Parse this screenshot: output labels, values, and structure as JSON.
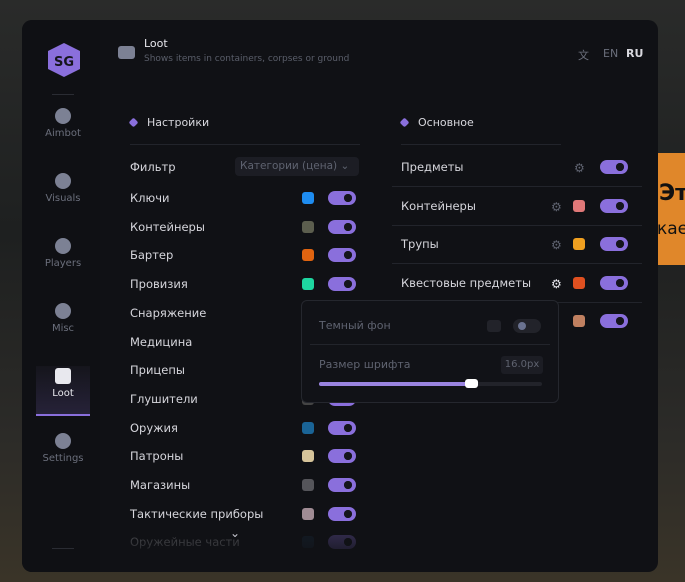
{
  "background": {
    "banner_line1": "Эт",
    "banner_line2": "кае"
  },
  "sidebar": {
    "items": [
      {
        "label": "Aimbot",
        "icon": "alien-icon"
      },
      {
        "label": "Visuals",
        "icon": "vr-headset-icon"
      },
      {
        "label": "Players",
        "icon": "users-icon"
      },
      {
        "label": "Misc",
        "icon": "more-icon"
      },
      {
        "label": "Loot",
        "icon": "toolbox-icon",
        "active": true
      },
      {
        "label": "Settings",
        "icon": "list-icon"
      }
    ]
  },
  "header": {
    "title": "Loot",
    "subtitle": "Shows items in containers, corpses or ground",
    "lang_icon": "translate-icon",
    "langs": [
      "EN",
      "RU"
    ],
    "active_lang": "RU"
  },
  "settings": {
    "title": "Настройки",
    "filter_label": "Фильтр",
    "filter_value": "Категории (цена)",
    "items": [
      {
        "label": "Ключи",
        "color": "#1e8cf0",
        "on": true
      },
      {
        "label": "Контейнеры",
        "color": "#5c5e4e",
        "on": true
      },
      {
        "label": "Бартер",
        "color": "#e06410",
        "on": true
      },
      {
        "label": "Провизия",
        "color": "#1ed6a0",
        "on": true
      },
      {
        "label": "Снаряжение",
        "color": "#444",
        "on": true
      },
      {
        "label": "Медицина",
        "color": "#444",
        "on": true
      },
      {
        "label": "Прицепы",
        "color": "#444",
        "on": true
      },
      {
        "label": "Глушители",
        "color": "#444",
        "on": true
      },
      {
        "label": "Оружия",
        "color": "#1a6496",
        "on": true
      },
      {
        "label": "Патроны",
        "color": "#d6c49a",
        "on": true
      },
      {
        "label": "Магазины",
        "color": "#55555a",
        "on": true
      },
      {
        "label": "Тактические приборы",
        "color": "#a08c94",
        "on": true
      },
      {
        "label": "Оружейные части",
        "color": "#1a3248",
        "on": true
      }
    ]
  },
  "main": {
    "title": "Основное",
    "items": [
      {
        "label": "Предметы",
        "gear": true,
        "on": true
      },
      {
        "label": "Контейнеры",
        "gear": true,
        "color": "#e07878",
        "on": true
      },
      {
        "label": "Трупы",
        "gear": true,
        "color": "#f0a020",
        "on": true
      },
      {
        "label": "Квестовые предметы",
        "gear": true,
        "color": "#e05020",
        "on": true
      },
      {
        "label": "",
        "color": "#c08060",
        "on": true
      }
    ]
  },
  "popup": {
    "dark_bg_label": "Темный фон",
    "dark_bg_on": false,
    "font_size_label": "Размер шрифта",
    "font_size_value": "16.0px",
    "font_size_fraction": 0.68
  }
}
